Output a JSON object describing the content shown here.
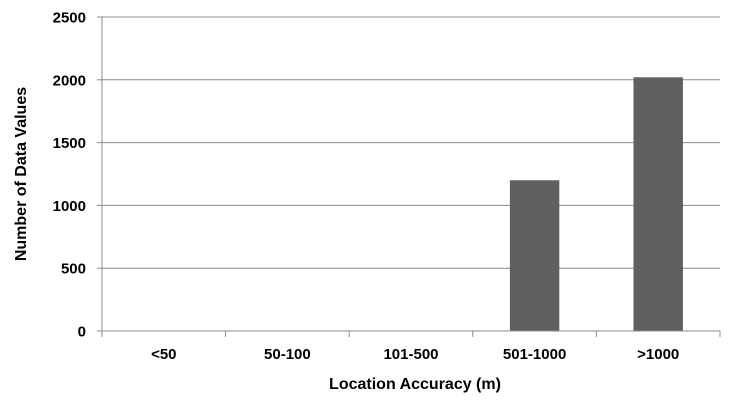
{
  "chart_data": {
    "type": "bar",
    "categories": [
      "<50",
      "50-100",
      "101-500",
      "501-1000",
      ">1000"
    ],
    "values": [
      0,
      0,
      0,
      1200,
      2020
    ],
    "xlabel": "Location Accuracy (m)",
    "ylabel": "Number of Data Values",
    "ylim": [
      0,
      2500
    ],
    "yticks": [
      0,
      500,
      1000,
      1500,
      2000,
      2500
    ],
    "grid": true,
    "legend": "none",
    "colors": {
      "bar": "#606060",
      "grid": "#8c8c8c",
      "axis": "#8c8c8c"
    }
  }
}
